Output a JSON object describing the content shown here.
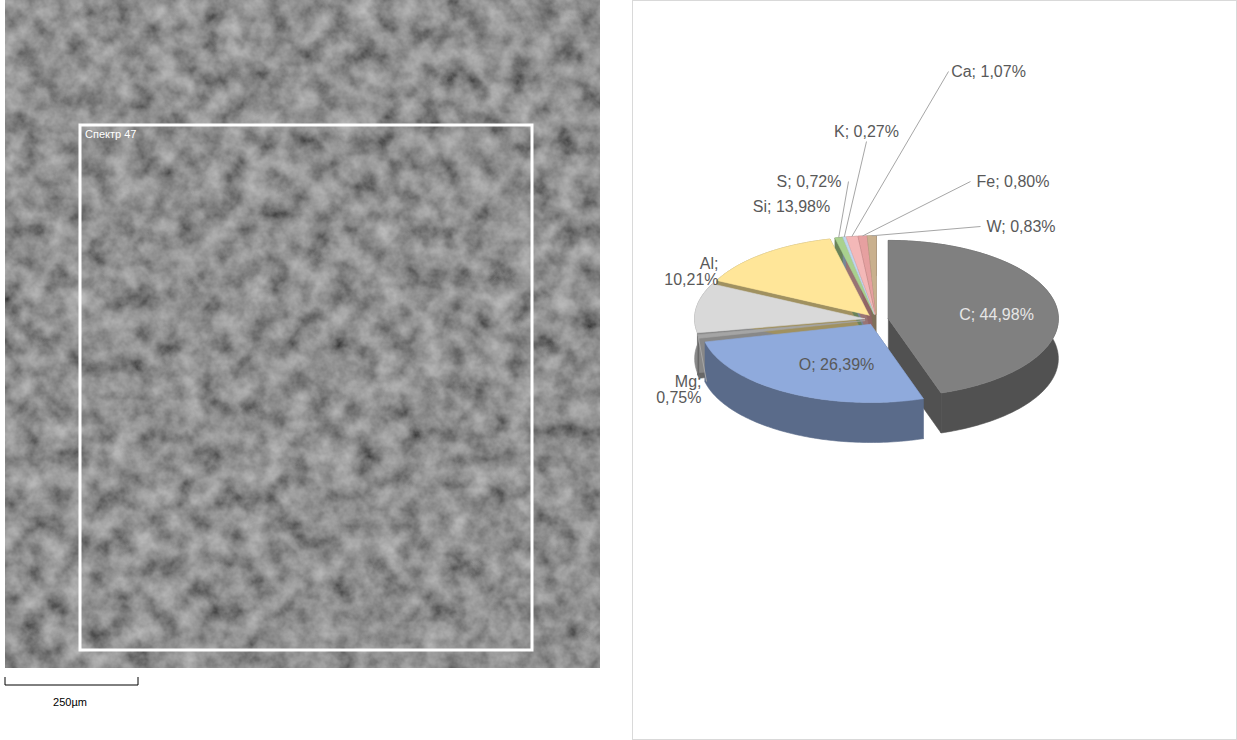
{
  "chart_data": {
    "type": "pie",
    "categories": [
      "C",
      "O",
      "Mg",
      "Al",
      "Si",
      "S",
      "K",
      "Ca",
      "Fe",
      "W"
    ],
    "values": [
      44.98,
      26.39,
      0.75,
      10.21,
      13.98,
      0.72,
      0.27,
      1.07,
      0.8,
      0.83
    ],
    "value_labels": [
      "C; 44,98%",
      "O; 26,39%",
      "Mg; 0,75%",
      "Al; 10,21%",
      "Si; 13,98%",
      "S; 0,72%",
      "K; 0,27%",
      "Ca; 1,07%",
      "Fe; 0,80%",
      "W; 0,83%"
    ],
    "colors": [
      "#808080",
      "#8faadc",
      "#a5a5a5",
      "#d9d9d9",
      "#ffe699",
      "#a9d18e",
      "#bdd7ee",
      "#f4b8b8",
      "#e6a0a0",
      "#c9b08e"
    ],
    "data_labels": true
  },
  "micrograph": {
    "spectrum_label": "Спектр 47",
    "scale_bar": "250µm"
  }
}
